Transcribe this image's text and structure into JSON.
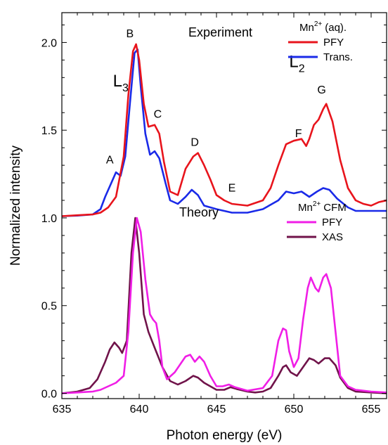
{
  "chart_data": {
    "type": "line",
    "xlabel": "Photon energy (eV)",
    "ylabel": "Normalized intensity",
    "xlim": [
      635,
      656
    ],
    "ylim": [
      -0.03,
      2.17
    ],
    "x_ticks": [
      635,
      640,
      645,
      650,
      655
    ],
    "y_ticks": [
      0.0,
      0.5,
      1.0,
      1.5,
      2.0
    ],
    "y_tick_labels": [
      "0.0",
      "0.5",
      "1.0",
      "1.5",
      "2.0"
    ],
    "grid": false,
    "panels": {
      "experiment": {
        "title": "Experiment",
        "legend_header": {
          "ion": "Mn",
          "charge": "2+",
          "suffix": "(aq)."
        },
        "legend_position": "top-right"
      },
      "theory": {
        "title": "Theory",
        "legend_header": {
          "ion": "Mn",
          "charge": "2+",
          "suffix": "CFM"
        },
        "legend_position": "middle-right"
      }
    },
    "annotations": {
      "L3": {
        "main": "L",
        "sub": "3",
        "x": 638.3,
        "y": 1.75
      },
      "L2": {
        "main": "L",
        "sub": "2",
        "x": 649.7,
        "y": 1.86
      },
      "peaks": [
        {
          "label": "A",
          "x": 638.1,
          "y": 1.31
        },
        {
          "label": "B",
          "x": 639.4,
          "y": 2.03
        },
        {
          "label": "C",
          "x": 641.2,
          "y": 1.57
        },
        {
          "label": "D",
          "x": 643.6,
          "y": 1.41
        },
        {
          "label": "E",
          "x": 646.0,
          "y": 1.15
        },
        {
          "label": "F",
          "x": 650.3,
          "y": 1.46
        },
        {
          "label": "G",
          "x": 651.8,
          "y": 1.71
        }
      ]
    },
    "series": [
      {
        "name": "PFY",
        "group": "experiment",
        "color": "#e8141c",
        "x": [
          635,
          636,
          637,
          637.5,
          638,
          638.5,
          639,
          639.3,
          639.6,
          639.8,
          640,
          640.3,
          640.6,
          641,
          641.3,
          641.6,
          642,
          642.5,
          643,
          643.5,
          643.8,
          644.2,
          644.6,
          645,
          645.5,
          646,
          647,
          648,
          648.5,
          649,
          649.5,
          650,
          650.5,
          650.8,
          651,
          651.3,
          651.6,
          651.9,
          652.1,
          652.5,
          653,
          653.5,
          654,
          654.5,
          655,
          655.5,
          656
        ],
        "y": [
          1.01,
          1.015,
          1.02,
          1.03,
          1.06,
          1.12,
          1.35,
          1.7,
          1.95,
          1.99,
          1.9,
          1.65,
          1.52,
          1.53,
          1.48,
          1.32,
          1.15,
          1.13,
          1.28,
          1.35,
          1.37,
          1.3,
          1.22,
          1.13,
          1.1,
          1.08,
          1.07,
          1.1,
          1.17,
          1.3,
          1.42,
          1.44,
          1.45,
          1.41,
          1.45,
          1.53,
          1.56,
          1.62,
          1.65,
          1.55,
          1.33,
          1.17,
          1.1,
          1.08,
          1.07,
          1.09,
          1.1
        ]
      },
      {
        "name": "Trans.",
        "group": "experiment",
        "color": "#1a2ae8",
        "x": [
          635,
          636,
          637,
          637.5,
          637.8,
          638.2,
          638.5,
          638.8,
          639.1,
          639.4,
          639.7,
          639.9,
          640.1,
          640.4,
          640.7,
          641,
          641.3,
          641.7,
          642,
          642.5,
          643,
          643.4,
          643.8,
          644.2,
          644.6,
          645,
          645.5,
          646,
          647,
          648,
          649,
          649.5,
          650,
          650.5,
          651,
          651.5,
          651.9,
          652.3,
          652.8,
          653.5,
          654,
          655,
          656
        ],
        "y": [
          1.01,
          1.013,
          1.02,
          1.05,
          1.12,
          1.2,
          1.26,
          1.24,
          1.35,
          1.65,
          1.94,
          1.96,
          1.75,
          1.48,
          1.36,
          1.38,
          1.34,
          1.2,
          1.1,
          1.08,
          1.12,
          1.16,
          1.13,
          1.07,
          1.06,
          1.05,
          1.04,
          1.03,
          1.03,
          1.05,
          1.1,
          1.15,
          1.14,
          1.15,
          1.12,
          1.15,
          1.17,
          1.16,
          1.11,
          1.06,
          1.04,
          1.04,
          1.04
        ]
      },
      {
        "name": "PFY",
        "group": "theory",
        "color": "#f01ee6",
        "x": [
          635,
          636,
          637,
          637.5,
          638,
          638.5,
          639,
          639.3,
          639.6,
          639.85,
          640.1,
          640.4,
          640.7,
          640.9,
          641.1,
          641.3,
          641.5,
          641.8,
          642.3,
          643,
          643.3,
          643.6,
          643.9,
          644.2,
          644.6,
          645,
          645.4,
          645.8,
          646.2,
          647,
          648,
          648.6,
          649,
          649.3,
          649.5,
          649.7,
          650,
          650.3,
          650.6,
          650.9,
          651.1,
          651.4,
          651.6,
          651.9,
          652.1,
          652.4,
          652.7,
          653,
          653.5,
          654,
          655,
          656
        ],
        "y": [
          0.0,
          0.005,
          0.01,
          0.02,
          0.04,
          0.06,
          0.1,
          0.35,
          0.8,
          1.0,
          0.92,
          0.65,
          0.45,
          0.42,
          0.4,
          0.3,
          0.15,
          0.08,
          0.12,
          0.21,
          0.22,
          0.18,
          0.21,
          0.18,
          0.1,
          0.04,
          0.04,
          0.05,
          0.035,
          0.015,
          0.03,
          0.1,
          0.3,
          0.37,
          0.36,
          0.24,
          0.15,
          0.2,
          0.42,
          0.6,
          0.66,
          0.6,
          0.58,
          0.66,
          0.68,
          0.6,
          0.35,
          0.1,
          0.04,
          0.02,
          0.01,
          0.005
        ]
      },
      {
        "name": "XAS",
        "group": "theory",
        "color": "#70134a",
        "x": [
          635,
          636,
          636.8,
          637.3,
          637.8,
          638.1,
          638.4,
          638.7,
          638.9,
          639.2,
          639.5,
          639.75,
          640,
          640.3,
          640.6,
          641,
          641.5,
          642,
          642.5,
          643,
          643.5,
          643.8,
          644.2,
          644.6,
          645,
          645.5,
          645.9,
          646.3,
          647,
          647.5,
          648,
          648.5,
          649,
          649.3,
          649.5,
          649.8,
          650.2,
          650.6,
          651,
          651.3,
          651.6,
          652,
          652.3,
          652.7,
          653,
          653.5,
          654,
          655,
          656
        ],
        "y": [
          0.0,
          0.01,
          0.03,
          0.08,
          0.18,
          0.25,
          0.29,
          0.26,
          0.23,
          0.3,
          0.8,
          1.0,
          0.8,
          0.45,
          0.35,
          0.26,
          0.15,
          0.07,
          0.05,
          0.07,
          0.1,
          0.09,
          0.06,
          0.04,
          0.02,
          0.02,
          0.035,
          0.025,
          0.01,
          0.005,
          0.01,
          0.03,
          0.1,
          0.15,
          0.16,
          0.12,
          0.1,
          0.15,
          0.2,
          0.19,
          0.17,
          0.2,
          0.2,
          0.16,
          0.09,
          0.03,
          0.01,
          0.005,
          0.0
        ]
      }
    ]
  }
}
